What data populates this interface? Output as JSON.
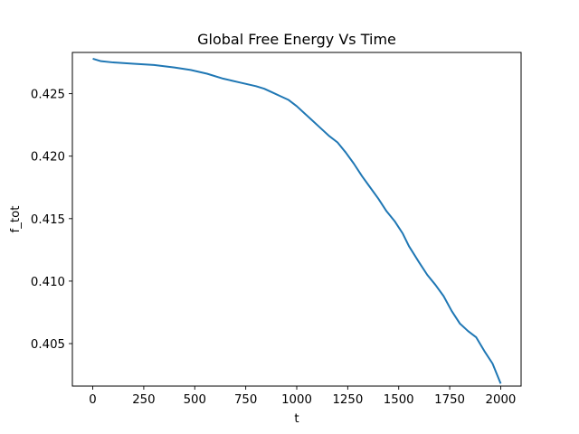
{
  "chart_data": {
    "type": "line",
    "title": "Global Free Energy Vs Time",
    "xlabel": "t",
    "ylabel": "f_tot",
    "xlim": [
      -100,
      2100
    ],
    "ylim": [
      0.4016,
      0.4283
    ],
    "xticks": [
      0,
      250,
      500,
      750,
      1000,
      1250,
      1500,
      1750,
      2000
    ],
    "xtick_labels": [
      "0",
      "250",
      "500",
      "750",
      "1000",
      "1250",
      "1500",
      "1750",
      "2000"
    ],
    "yticks": [
      0.405,
      0.41,
      0.415,
      0.42,
      0.425
    ],
    "ytick_labels": [
      "0.405",
      "0.410",
      "0.415",
      "0.420",
      "0.425"
    ],
    "grid": false,
    "series": [
      {
        "color": "#1f77b4",
        "x": [
          0,
          40,
          100,
          200,
          300,
          400,
          480,
          560,
          640,
          720,
          800,
          840,
          880,
          920,
          960,
          1000,
          1040,
          1080,
          1120,
          1160,
          1200,
          1240,
          1280,
          1320,
          1360,
          1400,
          1440,
          1480,
          1520,
          1550,
          1600,
          1640,
          1680,
          1720,
          1760,
          1800,
          1840,
          1880,
          1920,
          1960,
          2000
        ],
        "y": [
          0.4278,
          0.4276,
          0.4275,
          0.4274,
          0.4273,
          0.4271,
          0.4269,
          0.4266,
          0.4262,
          0.4259,
          0.4256,
          0.4254,
          0.4251,
          0.4248,
          0.4245,
          0.424,
          0.4234,
          0.4228,
          0.4222,
          0.4216,
          0.4211,
          0.4203,
          0.4194,
          0.4184,
          0.4175,
          0.4166,
          0.4156,
          0.4148,
          0.4138,
          0.4128,
          0.4115,
          0.4105,
          0.4097,
          0.4088,
          0.4076,
          0.4066,
          0.406,
          0.4055,
          0.4044,
          0.4034,
          0.4018
        ]
      }
    ]
  }
}
